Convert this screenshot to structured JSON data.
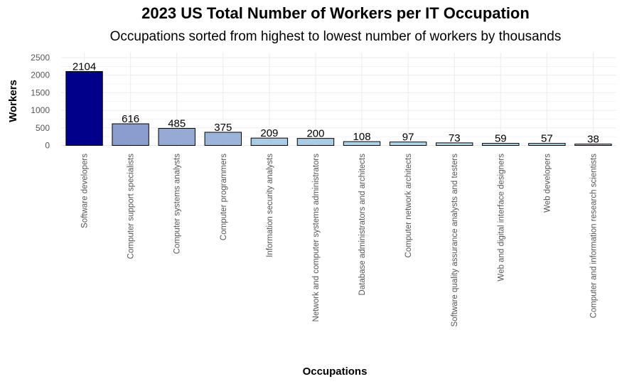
{
  "chart_data": {
    "type": "bar",
    "title": "2023 US Total Number of Workers per IT Occupation",
    "subtitle": "Occupations sorted from highest to lowest number of workers by thousands",
    "xlabel": "Occupations",
    "ylabel": "Workers",
    "ylim": [
      0,
      2600
    ],
    "yticks": [
      0,
      500,
      1000,
      1500,
      2000,
      2500
    ],
    "grid": true,
    "legend": "none",
    "categories": [
      "Software developers",
      "Computer support specialists",
      "Computer systems analysts",
      "Computer programmers",
      "Information security analysts",
      "Network and computer systems administrators",
      "Database administrators and architects",
      "Computer network architects",
      "Software quality assurance analysts and testers",
      "Web and digital interface designers",
      "Web developers",
      "Computer and information research scientists"
    ],
    "values": [
      2104,
      616,
      485,
      375,
      209,
      200,
      108,
      97,
      73,
      59,
      57,
      38
    ],
    "bar_colors": [
      "#00008b",
      "#8b9dcf",
      "#95aad5",
      "#9db4d9",
      "#a9cbe3",
      "#aacde4",
      "#aed4e8",
      "#afd6e9",
      "#b1d9ea",
      "#b2daeb",
      "#b2dbeb",
      "#b3dcec"
    ],
    "bar_outline": "#000000",
    "grid_color": "#ebebeb"
  }
}
